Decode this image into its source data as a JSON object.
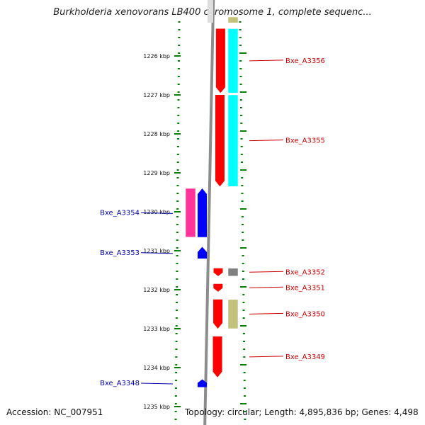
{
  "title": "Burkholderia xenovorans LB400 chromosome 1, complete sequenc...",
  "footer": {
    "accession": "Accession: NC_007951",
    "summary": "Topology: circular; Length: 4,895,836 bp; Genes: 4,498"
  },
  "colors": {
    "forward_red": "#ff0000",
    "cyan": "#00ffff",
    "magenta": "#ff3399",
    "blue": "#0000ff",
    "olive": "#c2c27a",
    "grey": "#808080",
    "ruler_green": "#008000",
    "label_red": "#cc0000",
    "label_blue": "#0000aa",
    "backbone": "#8c8c8c"
  },
  "ruler": {
    "unit": "kbp",
    "ticks": [
      "1226 kbp",
      "1227 kbp",
      "1228 kbp",
      "1229 kbp",
      "1230 kbp",
      "1231 kbp",
      "1232 kbp",
      "1233 kbp",
      "1234 kbp",
      "1235 kbp"
    ]
  },
  "genes": [
    {
      "label": "Bxe_A3356",
      "side": "right",
      "kb_start": 1225.3,
      "kb_end": 1226.95,
      "strand": "-",
      "track": "inner",
      "color": "red"
    },
    {
      "label": "Bxe_A3355",
      "side": "right",
      "kb_start": 1227.0,
      "kb_end": 1229.35,
      "strand": "-",
      "track": "inner",
      "color": "red"
    },
    {
      "label": "Bxe_A3352",
      "side": "right",
      "kb_start": 1231.45,
      "kb_end": 1231.65,
      "strand": "-",
      "track": "inner",
      "color": "red"
    },
    {
      "label": "Bxe_A3351",
      "side": "right",
      "kb_start": 1231.85,
      "kb_end": 1232.05,
      "strand": "-",
      "track": "inner",
      "color": "red"
    },
    {
      "label": "Bxe_A3350",
      "side": "right",
      "kb_start": 1232.25,
      "kb_end": 1233.0,
      "strand": "-",
      "track": "inner",
      "color": "red"
    },
    {
      "label": "Bxe_A3349",
      "side": "right",
      "kb_start": 1233.2,
      "kb_end": 1234.25,
      "strand": "-",
      "track": "inner",
      "color": "red"
    },
    {
      "label": "Bxe_A3354",
      "side": "left",
      "kb_start": 1229.4,
      "kb_end": 1230.65,
      "strand": "+",
      "track": "inner",
      "color": "blue"
    },
    {
      "label": "Bxe_A3353",
      "side": "left",
      "kb_start": 1230.9,
      "kb_end": 1231.2,
      "strand": "+",
      "track": "inner",
      "color": "blue"
    },
    {
      "label": "Bxe_A3348",
      "side": "left",
      "kb_start": 1234.3,
      "kb_end": 1234.5,
      "strand": "+",
      "track": "inner",
      "color": "blue"
    }
  ],
  "feature_blocks": [
    {
      "kb_start": 1225.3,
      "kb_end": 1226.95,
      "side": "right",
      "color": "cyan"
    },
    {
      "kb_start": 1227.0,
      "kb_end": 1229.35,
      "side": "right",
      "color": "cyan"
    },
    {
      "kb_start": 1225.0,
      "kb_end": 1225.15,
      "side": "right",
      "color": "olive"
    },
    {
      "kb_start": 1231.45,
      "kb_end": 1231.65,
      "side": "right",
      "color": "grey"
    },
    {
      "kb_start": 1232.25,
      "kb_end": 1233.0,
      "side": "right",
      "color": "olive"
    },
    {
      "kb_start": 1229.4,
      "kb_end": 1230.65,
      "side": "left",
      "color": "magenta"
    }
  ]
}
